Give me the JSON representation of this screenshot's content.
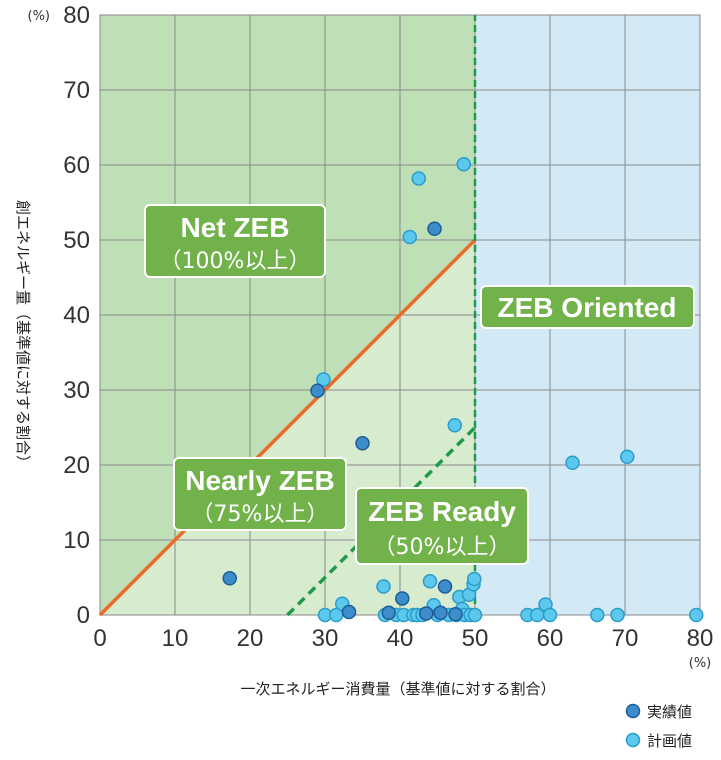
{
  "chart_data": {
    "type": "scatter",
    "xlabel": "一次エネルギー消費量（基準値に対する割合）",
    "ylabel": "創エネルギー量（基準値に対する割合）",
    "x_unit": "(%)",
    "y_unit": "(%)",
    "xlim": [
      0,
      80
    ],
    "ylim": [
      0,
      80
    ],
    "x_ticks": [
      "0",
      "10",
      "20",
      "30",
      "40",
      "50",
      "60",
      "70",
      "80"
    ],
    "y_ticks": [
      "0",
      "10",
      "20",
      "30",
      "40",
      "50",
      "60",
      "70",
      "80"
    ],
    "grid": true,
    "zones": [
      {
        "name": "Net ZEB",
        "sub": "（100%以上）"
      },
      {
        "name": "Nearly ZEB",
        "sub": "（75%以上）"
      },
      {
        "name": "ZEB Ready",
        "sub": "（50%以上）"
      },
      {
        "name": "ZEB Oriented",
        "sub": ""
      }
    ],
    "zone_colors": {
      "net_zeb": "#bfdfb7",
      "nearly_zeb": "#d7ebcf",
      "oriented": "#d4e9f6",
      "label_bg": "#72b24a",
      "net_line": "#eb6b27",
      "ready_line": "#1f9a4a"
    },
    "lines": [
      {
        "name": "Net ZEB boundary",
        "points": [
          [
            0,
            0
          ],
          [
            50,
            50
          ]
        ]
      },
      {
        "name": "ZEB Ready boundary",
        "points": [
          [
            25,
            0
          ],
          [
            50,
            25
          ]
        ]
      },
      {
        "name": "Oriented boundary",
        "points": [
          [
            50,
            0
          ],
          [
            50,
            80
          ]
        ]
      }
    ],
    "legend_position": "bottom-right",
    "series": [
      {
        "name": "実績値",
        "color": "#3d8ccc",
        "points": [
          [
            17.3,
            4.9
          ],
          [
            29,
            29.9
          ],
          [
            35,
            22.9
          ],
          [
            44.6,
            51.5
          ],
          [
            33.2,
            0.4
          ],
          [
            38.5,
            0.3
          ],
          [
            40.3,
            2.2
          ],
          [
            43.5,
            0.2
          ],
          [
            45.4,
            0.3
          ],
          [
            46,
            3.8
          ],
          [
            47.4,
            0.1
          ]
        ]
      },
      {
        "name": "計画値",
        "color": "#5cc8ee",
        "points": [
          [
            29.8,
            31.4
          ],
          [
            42.5,
            58.2
          ],
          [
            41.3,
            50.4
          ],
          [
            48.5,
            60.1
          ],
          [
            47.3,
            25.3
          ],
          [
            63,
            20.3
          ],
          [
            70.3,
            21.1
          ],
          [
            30,
            0
          ],
          [
            31.5,
            0
          ],
          [
            32.3,
            1.5
          ],
          [
            37.8,
            3.8
          ],
          [
            38,
            0
          ],
          [
            39.5,
            0
          ],
          [
            40.5,
            0
          ],
          [
            41.8,
            0
          ],
          [
            42.3,
            0
          ],
          [
            43,
            0
          ],
          [
            44,
            4.5
          ],
          [
            44.5,
            1.3
          ],
          [
            45,
            0
          ],
          [
            46.5,
            0
          ],
          [
            47.5,
            0
          ],
          [
            47.9,
            2.4
          ],
          [
            48.3,
            0.8
          ],
          [
            48.6,
            0
          ],
          [
            49.2,
            2.7
          ],
          [
            49.4,
            0
          ],
          [
            49.8,
            4.1
          ],
          [
            49.9,
            4.8
          ],
          [
            50,
            0
          ],
          [
            57,
            0
          ],
          [
            58.3,
            0
          ],
          [
            59.4,
            1.4
          ],
          [
            60,
            0
          ],
          [
            66.3,
            0
          ],
          [
            69,
            0
          ],
          [
            79.5,
            0
          ]
        ]
      }
    ]
  }
}
